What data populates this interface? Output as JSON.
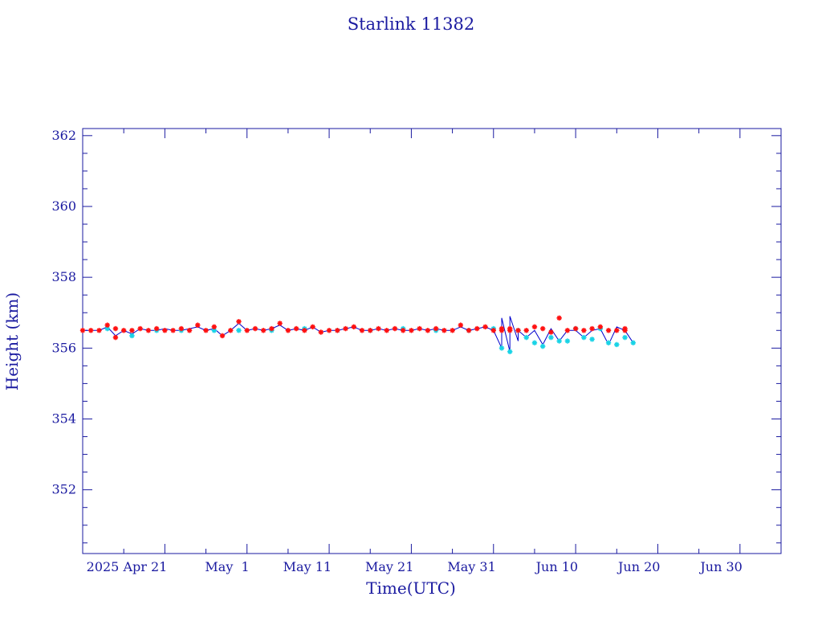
{
  "chart_data": {
    "type": "line",
    "title": "Starlink 11382",
    "xlabel": "Time(UTC)",
    "ylabel": "Height (km)",
    "x_tick_labels": [
      "2025 Apr 21",
      "May  1",
      "May 11",
      "May 21",
      "May 31",
      "Jun 10",
      "Jun 20",
      "Jun 30"
    ],
    "x_tick_dates": [
      "2025-04-21",
      "2025-05-01",
      "2025-05-11",
      "2025-05-21",
      "2025-05-31",
      "2025-06-10",
      "2025-06-20",
      "2025-06-30"
    ],
    "xlim": [
      "2025-04-11",
      "2025-07-05"
    ],
    "y_ticks": [
      352,
      354,
      356,
      358,
      360,
      362
    ],
    "ylim": [
      350.2,
      362.2
    ],
    "grid": false,
    "colors": {
      "axis": "#1a1aa0",
      "line": "#0000cc",
      "red_series": "#ff1010",
      "cyan_series": "#19d3e6"
    },
    "series": [
      {
        "marker": "red-star",
        "x": [
          "2025-04-11",
          "2025-04-12",
          "2025-04-13",
          "2025-04-14",
          "2025-04-15",
          "2025-04-15",
          "2025-04-16",
          "2025-04-17",
          "2025-04-18",
          "2025-04-19",
          "2025-04-20",
          "2025-04-21",
          "2025-04-22",
          "2025-04-23",
          "2025-04-24",
          "2025-04-25",
          "2025-04-26",
          "2025-04-27",
          "2025-04-28",
          "2025-04-29",
          "2025-04-30",
          "2025-05-01",
          "2025-05-02",
          "2025-05-03",
          "2025-05-04",
          "2025-05-05",
          "2025-05-06",
          "2025-05-07",
          "2025-05-08",
          "2025-05-09",
          "2025-05-10",
          "2025-05-11",
          "2025-05-12",
          "2025-05-13",
          "2025-05-14",
          "2025-05-15",
          "2025-05-16",
          "2025-05-17",
          "2025-05-18",
          "2025-05-19",
          "2025-05-20",
          "2025-05-21",
          "2025-05-22",
          "2025-05-23",
          "2025-05-24",
          "2025-05-25",
          "2025-05-26",
          "2025-05-27",
          "2025-05-28",
          "2025-05-29",
          "2025-05-30",
          "2025-05-31",
          "2025-06-01",
          "2025-06-01",
          "2025-06-02",
          "2025-06-02",
          "2025-06-03",
          "2025-06-04",
          "2025-06-05",
          "2025-06-06",
          "2025-06-07",
          "2025-06-08",
          "2025-06-09",
          "2025-06-10",
          "2025-06-11",
          "2025-06-12",
          "2025-06-13",
          "2025-06-14",
          "2025-06-15",
          "2025-06-16",
          "2025-06-16"
        ],
        "y": [
          356.5,
          356.5,
          356.5,
          356.65,
          356.55,
          356.3,
          356.5,
          356.5,
          356.55,
          356.5,
          356.55,
          356.5,
          356.5,
          356.55,
          356.5,
          356.65,
          356.5,
          356.6,
          356.35,
          356.5,
          356.75,
          356.5,
          356.55,
          356.5,
          356.55,
          356.7,
          356.5,
          356.55,
          356.5,
          356.6,
          356.45,
          356.5,
          356.5,
          356.55,
          356.6,
          356.5,
          356.5,
          356.55,
          356.5,
          356.55,
          356.5,
          356.5,
          356.55,
          356.5,
          356.55,
          356.5,
          356.5,
          356.65,
          356.5,
          356.55,
          356.6,
          356.5,
          356.5,
          356.55,
          356.5,
          356.55,
          356.5,
          356.5,
          356.6,
          356.55,
          356.45,
          356.85,
          356.5,
          356.55,
          356.5,
          356.55,
          356.6,
          356.5,
          356.5,
          356.55,
          356.5
        ]
      },
      {
        "marker": "cyan-star",
        "x": [
          "2025-04-14",
          "2025-04-17",
          "2025-04-20",
          "2025-04-23",
          "2025-04-27",
          "2025-04-30",
          "2025-05-04",
          "2025-05-08",
          "2025-05-12",
          "2025-05-16",
          "2025-05-20",
          "2025-05-24",
          "2025-05-28",
          "2025-05-31",
          "2025-06-01",
          "2025-06-02",
          "2025-06-03",
          "2025-06-04",
          "2025-06-05",
          "2025-06-06",
          "2025-06-07",
          "2025-06-08",
          "2025-06-09",
          "2025-06-10",
          "2025-06-11",
          "2025-06-12",
          "2025-06-13",
          "2025-06-14",
          "2025-06-15",
          "2025-06-16",
          "2025-06-17"
        ],
        "y": [
          356.55,
          356.35,
          356.5,
          356.5,
          356.5,
          356.5,
          356.5,
          356.55,
          356.5,
          356.5,
          356.55,
          356.5,
          356.5,
          356.55,
          356.0,
          355.9,
          356.5,
          356.3,
          356.15,
          356.05,
          356.3,
          356.2,
          356.2,
          356.55,
          356.3,
          356.25,
          356.55,
          356.15,
          356.1,
          356.3,
          356.15
        ]
      }
    ],
    "line_x": [
      "2025-04-11",
      "2025-04-12",
      "2025-04-13",
      "2025-04-14",
      "2025-04-15",
      "2025-04-16",
      "2025-04-17",
      "2025-04-18",
      "2025-04-19",
      "2025-04-20",
      "2025-04-21",
      "2025-04-22",
      "2025-04-23",
      "2025-04-24",
      "2025-04-25",
      "2025-04-26",
      "2025-04-27",
      "2025-04-28",
      "2025-04-29",
      "2025-04-30",
      "2025-05-01",
      "2025-05-02",
      "2025-05-03",
      "2025-05-04",
      "2025-05-05",
      "2025-05-06",
      "2025-05-07",
      "2025-05-08",
      "2025-05-09",
      "2025-05-10",
      "2025-05-11",
      "2025-05-12",
      "2025-05-13",
      "2025-05-14",
      "2025-05-15",
      "2025-05-16",
      "2025-05-17",
      "2025-05-18",
      "2025-05-19",
      "2025-05-20",
      "2025-05-21",
      "2025-05-22",
      "2025-05-23",
      "2025-05-24",
      "2025-05-25",
      "2025-05-26",
      "2025-05-27",
      "2025-05-28",
      "2025-05-29",
      "2025-05-30",
      "2025-05-31",
      "2025-06-01",
      "2025-06-01",
      "2025-06-02",
      "2025-06-02",
      "2025-06-03",
      "2025-06-03",
      "2025-06-04",
      "2025-06-05",
      "2025-06-06",
      "2025-06-07",
      "2025-06-08",
      "2025-06-09",
      "2025-06-10",
      "2025-06-11",
      "2025-06-12",
      "2025-06-13",
      "2025-06-14",
      "2025-06-15",
      "2025-06-16",
      "2025-06-17"
    ],
    "line_y": [
      356.5,
      356.5,
      356.5,
      356.6,
      356.35,
      356.5,
      356.4,
      356.55,
      356.5,
      356.5,
      356.55,
      356.5,
      356.5,
      356.55,
      356.6,
      356.5,
      356.55,
      356.35,
      356.5,
      356.7,
      356.5,
      356.55,
      356.5,
      356.55,
      356.65,
      356.5,
      356.55,
      356.5,
      356.6,
      356.45,
      356.5,
      356.5,
      356.55,
      356.6,
      356.5,
      356.5,
      356.55,
      356.5,
      356.55,
      356.5,
      356.5,
      356.55,
      356.5,
      356.55,
      356.5,
      356.5,
      356.6,
      356.5,
      356.55,
      356.6,
      356.5,
      356.0,
      356.85,
      355.9,
      356.9,
      356.2,
      356.5,
      356.3,
      356.5,
      356.1,
      356.55,
      356.2,
      356.5,
      356.5,
      356.3,
      356.5,
      356.55,
      356.1,
      356.6,
      356.5,
      356.15
    ]
  }
}
